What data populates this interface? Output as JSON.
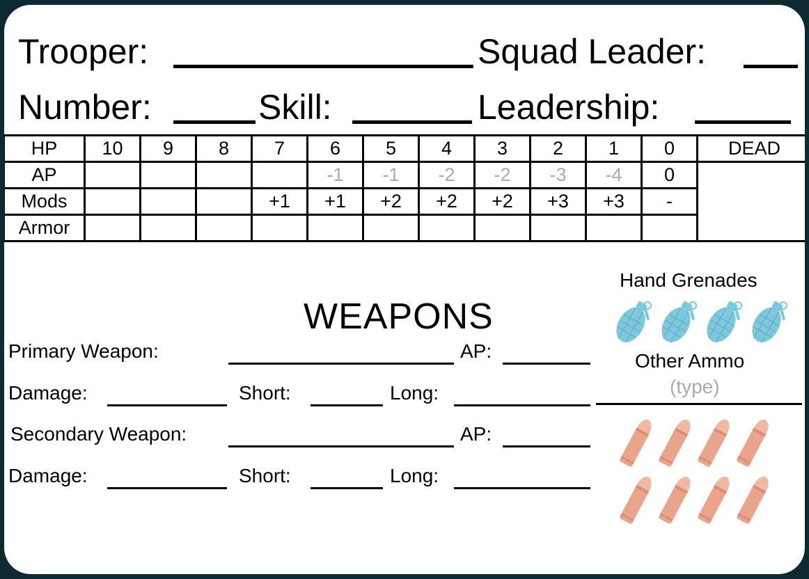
{
  "header": {
    "trooper_label": "Trooper:",
    "squad_leader_label": "Squad Leader:",
    "number_label": "Number:",
    "skill_label": "Skill:",
    "leadership_label": "Leadership:"
  },
  "stats": {
    "hp_label": "HP",
    "ap_label": "AP",
    "mods_label": "Mods",
    "armor_label": "Armor",
    "dead_label": "DEAD",
    "hp": [
      "10",
      "9",
      "8",
      "7",
      "6",
      "5",
      "4",
      "3",
      "2",
      "1",
      "0"
    ],
    "ap": [
      "",
      "",
      "",
      "",
      "-1",
      "-1",
      "-2",
      "-2",
      "-3",
      "-4",
      "0"
    ],
    "mods": [
      "",
      "",
      "",
      "+1",
      "+1",
      "+2",
      "+2",
      "+2",
      "+3",
      "+3",
      "-"
    ]
  },
  "weapons": {
    "title": "WEAPONS",
    "primary_label": "Primary Weapon:",
    "secondary_label": "Secondary  Weapon:",
    "ap_label": "AP:",
    "damage_label": "Damage:",
    "short_label": "Short:",
    "long_label": "Long:"
  },
  "ammo": {
    "hand_grenades_label": "Hand Grenades",
    "other_ammo_label": "Other Ammo",
    "type_hint": "(type)",
    "grenade_color": "#7ec8de",
    "bullet_color": "#e9a48b",
    "grenade_count": 4,
    "bullet_count": 8
  }
}
